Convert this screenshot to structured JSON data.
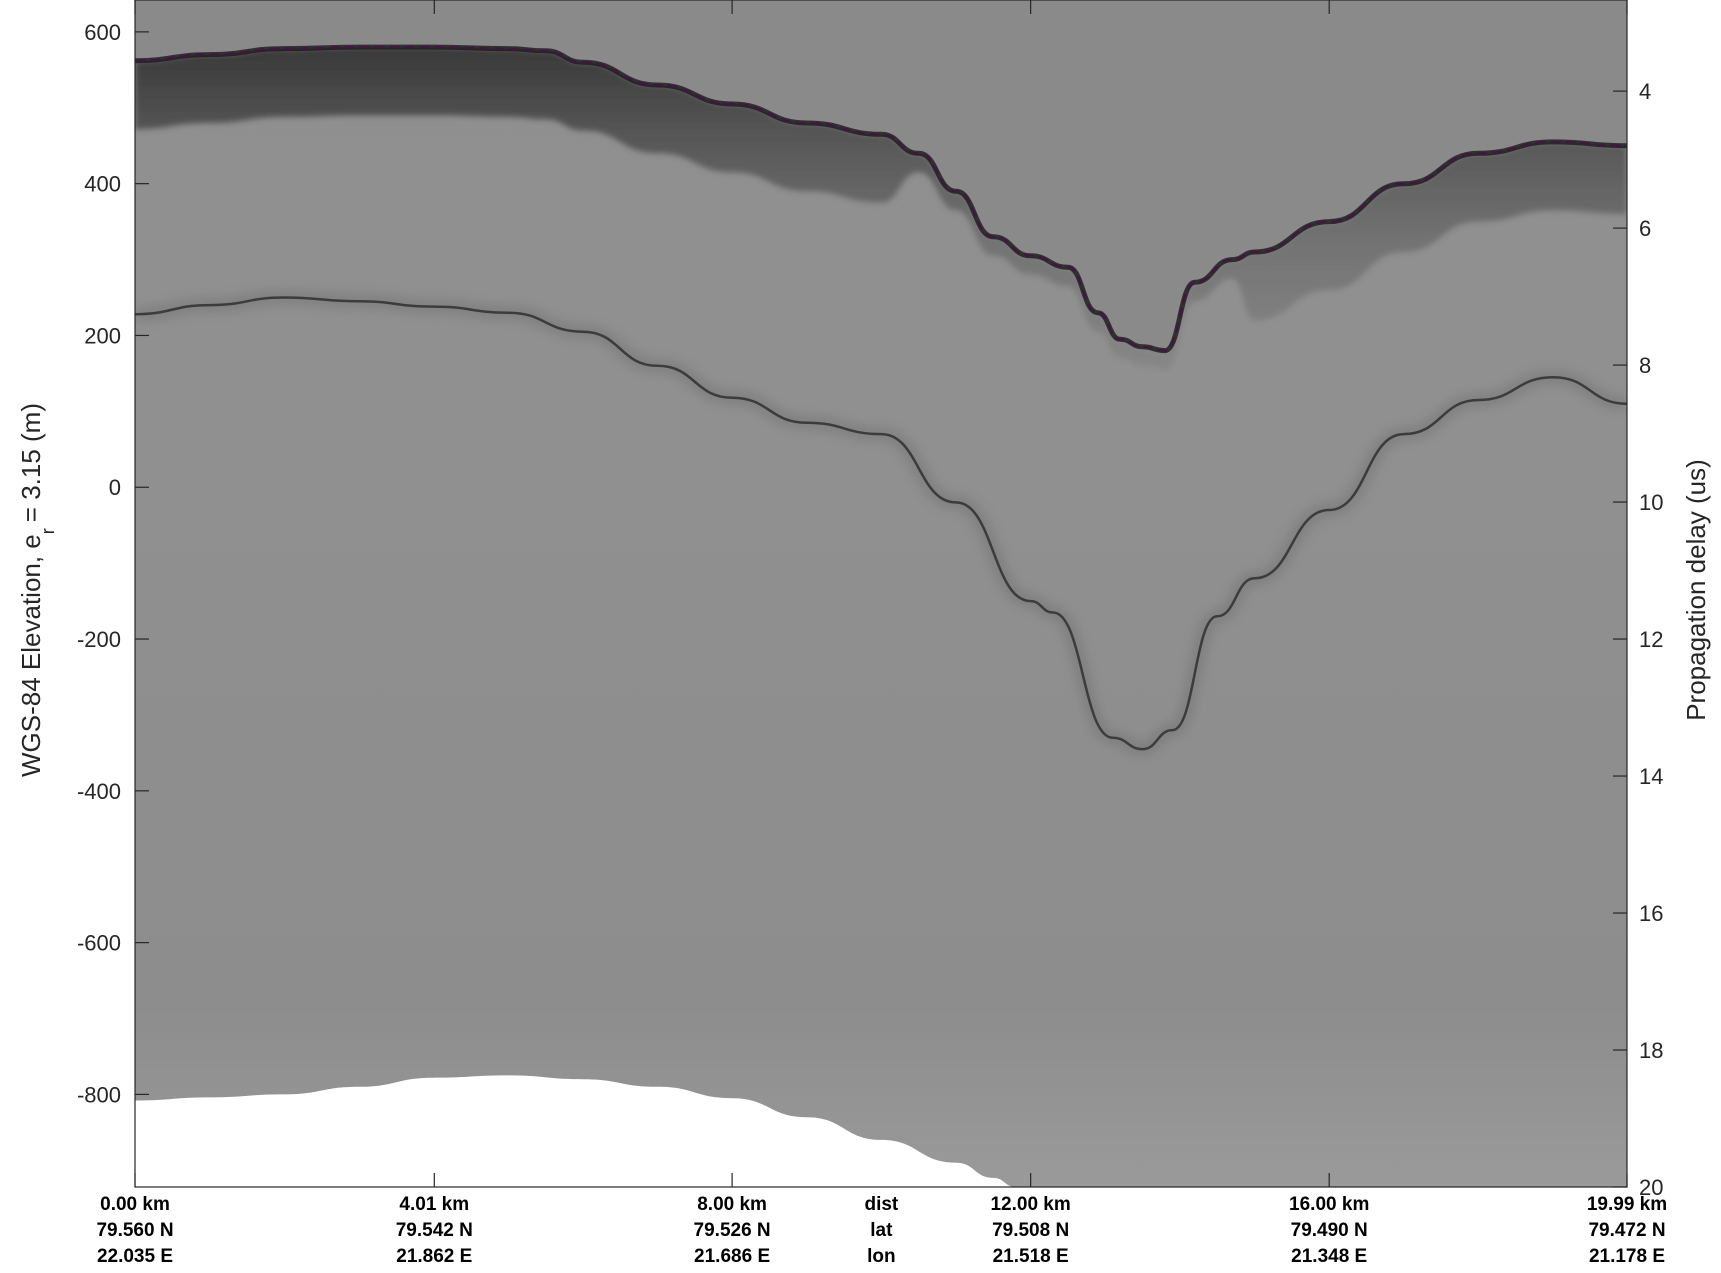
{
  "chart_data": {
    "type": "radargram",
    "ylabel_left": "WGS-84 Elevation, e",
    "ylabel_left_sub": "r",
    "ylabel_left_tail": "= 3.15 (m)",
    "ylabel_right": "Propagation delay (us)",
    "left_axis": {
      "ylim": [
        -922,
        642
      ],
      "ticks": [
        600,
        400,
        200,
        0,
        -200,
        -400,
        -600,
        -800
      ],
      "tick_labels": [
        "600",
        "400",
        "200",
        "0",
        "-200",
        "-400",
        "-600",
        "-800"
      ]
    },
    "right_axis": {
      "range_at_top_bottom": [
        2.67,
        20
      ],
      "ticks": [
        4,
        6,
        8,
        10,
        12,
        14,
        16,
        18,
        20
      ],
      "tick_labels": [
        "4",
        "6",
        "8",
        "10",
        "12",
        "14",
        "16",
        "18",
        "20"
      ]
    },
    "xlim_km": [
      0,
      19.99
    ],
    "x_ticks_km": [
      0,
      4.01,
      8.0,
      12.0,
      16.0,
      19.99
    ],
    "row_headers": [
      "dist",
      "lat",
      "lon"
    ],
    "bottom_rows": {
      "dist": [
        "0.00 km",
        "4.01 km",
        "8.00 km",
        "12.00 km",
        "16.00 km",
        "19.99 km"
      ],
      "lat": [
        "79.560 N",
        "79.542 N",
        "79.526 N",
        "79.508 N",
        "79.490 N",
        "79.472 N"
      ],
      "lon": [
        "22.035 E",
        "21.862 E",
        "21.686 E",
        "21.518 E",
        "21.348 E",
        "21.178 E"
      ]
    },
    "surface_pick": {
      "color": "#e600e6",
      "style": "dashed",
      "x_km": [
        0,
        1,
        2,
        3,
        4,
        5,
        5.5,
        6,
        7,
        8,
        9,
        10,
        10.5,
        11,
        11.5,
        12,
        12.5,
        12.9,
        13.2,
        13.5,
        13.8,
        14.2,
        14.7,
        15,
        16,
        17,
        18,
        19,
        19.99
      ],
      "elev_m": [
        562,
        570,
        578,
        580,
        580,
        578,
        575,
        560,
        530,
        505,
        480,
        465,
        440,
        390,
        330,
        305,
        290,
        230,
        195,
        185,
        180,
        270,
        300,
        310,
        350,
        400,
        440,
        455,
        450
      ]
    },
    "bed_reflector": {
      "x_km": [
        0,
        1,
        2,
        3,
        4,
        5,
        6,
        7,
        8,
        9,
        10,
        11,
        12,
        12.3,
        13.1,
        13.5,
        13.9,
        14.5,
        15,
        16,
        17,
        18,
        19,
        19.99
      ],
      "elev_m": [
        228,
        240,
        250,
        245,
        238,
        230,
        205,
        160,
        118,
        85,
        70,
        -20,
        -150,
        -165,
        -330,
        -345,
        -320,
        -170,
        -120,
        -30,
        70,
        115,
        145,
        110
      ]
    },
    "data_floor": {
      "x_km": [
        0,
        1,
        2,
        3,
        4,
        5,
        6,
        7,
        8,
        9,
        10,
        11,
        11.5,
        11.8
      ],
      "elev_m": [
        -808,
        -804,
        -800,
        -790,
        -778,
        -775,
        -780,
        -790,
        -805,
        -830,
        -860,
        -890,
        -910,
        -922
      ]
    },
    "colormap": "grayscale",
    "grid": false
  }
}
